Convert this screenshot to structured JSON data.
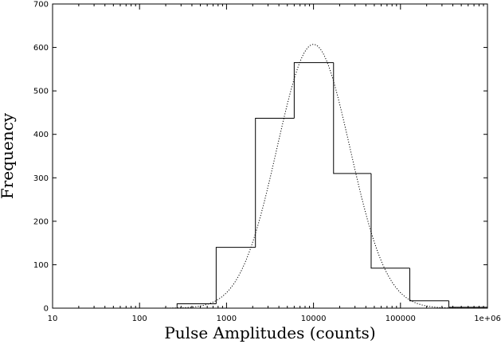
{
  "chart_data": {
    "type": "histogram",
    "xlabel": "Pulse Amplitudes (counts)",
    "ylabel": "Frequency",
    "x_scale": "log",
    "xlim": [
      10,
      1000000
    ],
    "ylim": [
      0,
      700
    ],
    "x_ticks": [
      {
        "value": 10,
        "label": "10"
      },
      {
        "value": 100,
        "label": "100"
      },
      {
        "value": 1000,
        "label": "1000"
      },
      {
        "value": 10000,
        "label": "10000"
      },
      {
        "value": 100000,
        "label": "100000"
      },
      {
        "value": 1000000,
        "label": "1e+06"
      }
    ],
    "y_ticks": [
      0,
      100,
      200,
      300,
      400,
      500,
      600,
      700
    ],
    "grid": false,
    "histogram": {
      "bin_edges": [
        10,
        270,
        760,
        2150,
        6000,
        17000,
        46000,
        128000,
        360000,
        1000000
      ],
      "counts": [
        0,
        10,
        140,
        437,
        565,
        310,
        92,
        17,
        2
      ]
    },
    "fit_curve": {
      "style": "dotted",
      "shape": "gaussian in log10(x)",
      "peak_x": 10000,
      "peak_y": 607,
      "sigma_log10": 0.42
    }
  }
}
